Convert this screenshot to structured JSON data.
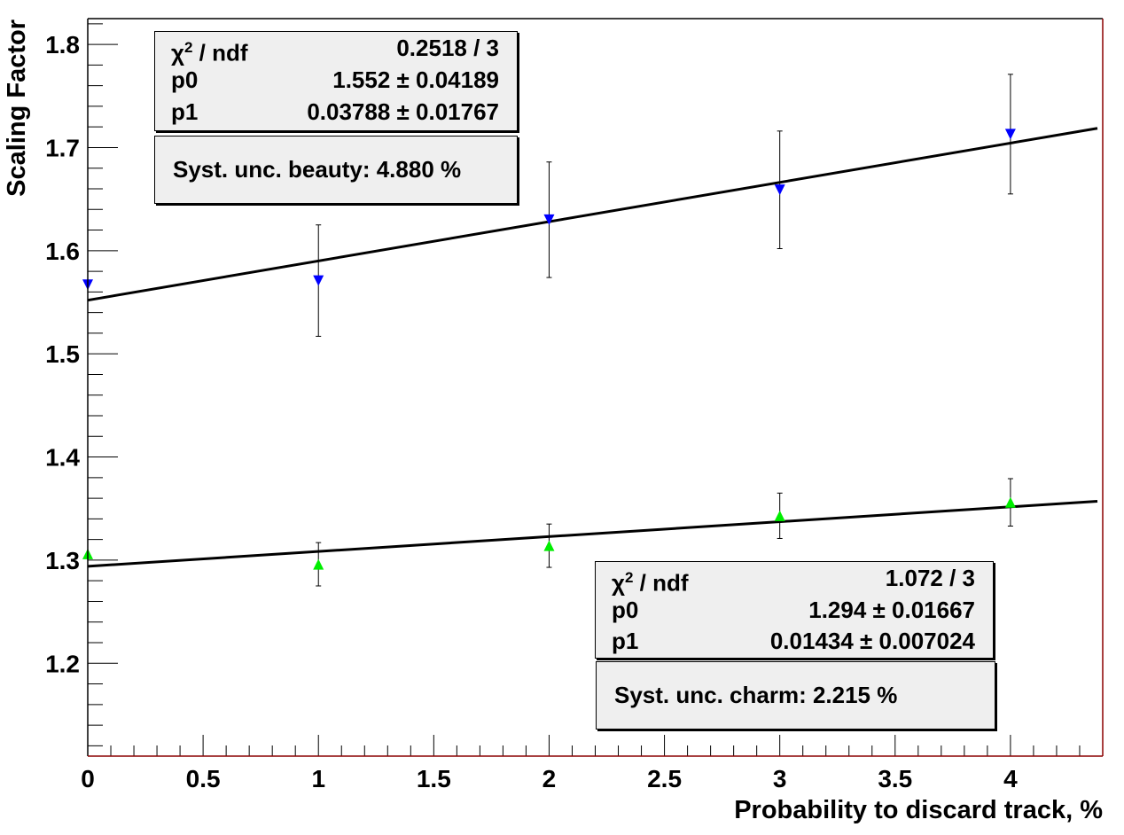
{
  "chart_data": {
    "type": "scatter",
    "xlabel": "Probability to discard track, %",
    "ylabel": "Scaling Factor",
    "xlim": [
      0,
      4.4
    ],
    "ylim": [
      1.11,
      1.825
    ],
    "x_ticks": [
      "0",
      "0.5",
      "1",
      "1.5",
      "2",
      "2.5",
      "3",
      "3.5",
      "4"
    ],
    "y_ticks": [
      "1.2",
      "1.3",
      "1.4",
      "1.5",
      "1.6",
      "1.7",
      "1.8"
    ],
    "grid": false,
    "series": [
      {
        "marker": "triangle-down",
        "color": "#0000ff",
        "x": [
          0,
          1,
          2,
          3,
          4
        ],
        "y": [
          1.567,
          1.571,
          1.63,
          1.659,
          1.713
        ],
        "yerr": [
          0,
          0.054,
          0.056,
          0.057,
          0.058
        ],
        "fit": {
          "p0": 1.552,
          "p1": 0.03788,
          "x_range": [
            0,
            4.4
          ]
        }
      },
      {
        "marker": "triangle-up",
        "color": "#00ee00",
        "x": [
          0,
          1,
          2,
          3,
          4
        ],
        "y": [
          1.306,
          1.296,
          1.314,
          1.343,
          1.356
        ],
        "yerr": [
          0,
          0.021,
          0.021,
          0.022,
          0.023
        ],
        "fit": {
          "p0": 1.294,
          "p1": 0.01434,
          "x_range": [
            0,
            4.4
          ]
        }
      }
    ]
  },
  "stats_beauty": {
    "rows": [
      {
        "key_main": "χ",
        "key_sup": "2",
        "key_rest": " / ndf",
        "value": "0.2518 / 3"
      },
      {
        "key_main": "p0",
        "key_sup": "",
        "key_rest": "",
        "value": "1.552 ± 0.04189"
      },
      {
        "key_main": "p1",
        "key_sup": "",
        "key_rest": "",
        "value": "0.03788 ± 0.01767"
      }
    ],
    "syst": "Syst. unc. beauty: 4.880 %"
  },
  "stats_charm": {
    "rows": [
      {
        "key_main": "χ",
        "key_sup": "2",
        "key_rest": " / ndf",
        "value": "1.072 / 3"
      },
      {
        "key_main": "p0",
        "key_sup": "",
        "key_rest": "",
        "value": "1.294 ± 0.01667"
      },
      {
        "key_main": "p1",
        "key_sup": "",
        "key_rest": "",
        "value": "0.01434 ± 0.007024"
      }
    ],
    "syst": "Syst. unc. charm: 2.215 %"
  },
  "colors": {
    "frame": "#000000",
    "right_edge": "#8b0000",
    "fit_line": "#000000"
  }
}
